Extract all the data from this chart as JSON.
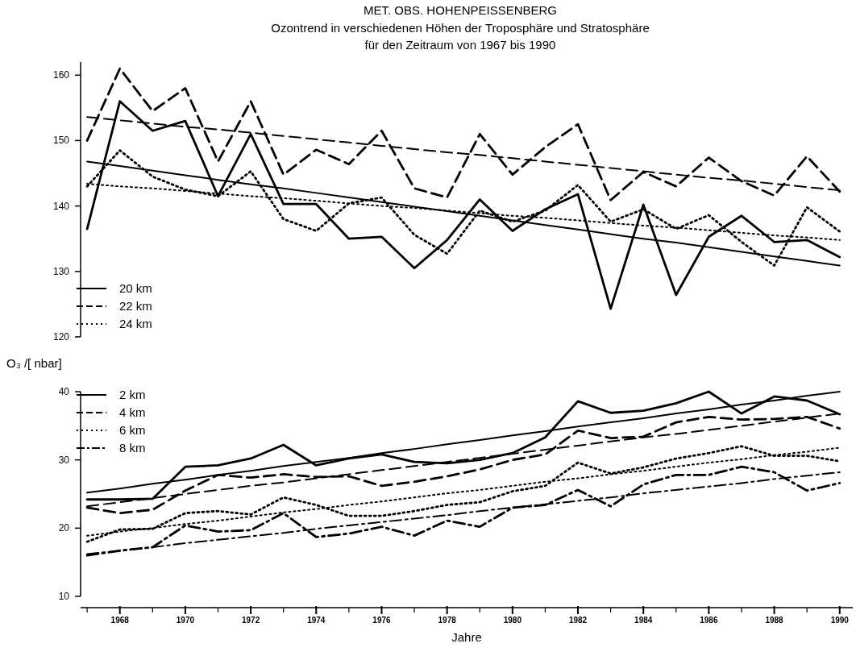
{
  "chart_data": [
    {
      "type": "line",
      "title": "MET. OBS. HOHENPEISSENBERG",
      "subtitle": "Ozontrend in verschiedenen Höhen der Troposphäre und Stratosphäre\nfür den Zeitraum von 1967 bis 1990",
      "x": [
        1967,
        1968,
        1969,
        1970,
        1971,
        1972,
        1973,
        1974,
        1975,
        1976,
        1977,
        1978,
        1979,
        1980,
        1981,
        1982,
        1983,
        1984,
        1985,
        1986,
        1987,
        1988,
        1989,
        1990
      ],
      "series": [
        {
          "name": "20 km",
          "color": "#000000",
          "line_style": "solid",
          "values": [
            136.5,
            156,
            151.5,
            153,
            141.5,
            151,
            140.3,
            140.3,
            135,
            135.3,
            130.5,
            134.8,
            141,
            136.2,
            139.5,
            141.8,
            124.3,
            140.2,
            126.4,
            135.3,
            138.5,
            134.5,
            134.8,
            132.2
          ]
        },
        {
          "name": "22 km",
          "color": "#000000",
          "line_style": "dashed",
          "values": [
            150,
            161,
            154.5,
            158,
            146.8,
            156,
            144.8,
            148.6,
            146.4,
            151.5,
            142.7,
            141.3,
            151,
            144.8,
            149,
            152.5,
            140.9,
            145.2,
            143,
            147.4,
            143.8,
            141.6,
            147.6,
            142.2
          ]
        },
        {
          "name": "24 km",
          "color": "#000000",
          "line_style": "dotted",
          "values": [
            143,
            148.5,
            144.5,
            142.5,
            141.5,
            145.3,
            138,
            136.2,
            140.4,
            141.3,
            135.6,
            132.7,
            139.3,
            137.6,
            139.3,
            143.2,
            137.6,
            139.5,
            136.5,
            138.6,
            134.5,
            130.9,
            139.8,
            136.1
          ]
        },
        {
          "type": "line",
          "color": "#000000",
          "line_style": "solid",
          "values": [
            146.8,
            146.1,
            145.4,
            144.7,
            144.0,
            143.3,
            142.7,
            142.0,
            141.3,
            140.6,
            139.9,
            139.2,
            138.5,
            137.8,
            137.1,
            136.4,
            135.7,
            135.0,
            134.4,
            133.7,
            133.0,
            132.3,
            131.6,
            130.9
          ]
        },
        {
          "type": "line",
          "color": "#000000",
          "line_style": "dashed",
          "values": [
            153.6,
            153.1,
            152.6,
            152.1,
            151.7,
            151.2,
            150.7,
            150.2,
            149.7,
            149.2,
            148.7,
            148.2,
            147.8,
            147.3,
            146.8,
            146.3,
            145.8,
            145.3,
            144.8,
            144.3,
            143.9,
            143.4,
            142.9,
            142.4
          ]
        },
        {
          "type": "line",
          "color": "#000000",
          "line_style": "dotted",
          "values": [
            143.4,
            143.0,
            142.7,
            142.3,
            141.9,
            141.5,
            141.2,
            140.8,
            140.4,
            140.0,
            139.7,
            139.3,
            138.9,
            138.5,
            138.2,
            137.8,
            137.4,
            137.0,
            136.7,
            136.3,
            135.9,
            135.5,
            135.2,
            134.8
          ]
        }
      ],
      "xlim": [
        1966.8,
        1990.4
      ],
      "ylim": [
        120,
        162
      ],
      "yticks": [
        120,
        130,
        140,
        150,
        160
      ],
      "tick_labels": "y",
      "legend": "bottom left",
      "grid": false
    },
    {
      "type": "line",
      "xlabel": "Jahre",
      "ylabel": "O₃ /[ nbar]",
      "x": [
        1967,
        1968,
        1969,
        1970,
        1971,
        1972,
        1973,
        1974,
        1975,
        1976,
        1977,
        1978,
        1979,
        1980,
        1981,
        1982,
        1983,
        1984,
        1985,
        1986,
        1987,
        1988,
        1989,
        1990
      ],
      "series": [
        {
          "name": "2 km",
          "color": "#000000",
          "line_style": "solid",
          "values": [
            24.2,
            24.2,
            24.3,
            29.0,
            29.2,
            30.2,
            32.2,
            29.2,
            30.2,
            30.8,
            29.7,
            29.5,
            30.0,
            31.0,
            33.3,
            38.6,
            36.9,
            37.2,
            38.3,
            40.0,
            36.8,
            39.3,
            38.7,
            36.7
          ]
        },
        {
          "name": "4 km",
          "color": "#000000",
          "line_style": "dashed",
          "values": [
            23.0,
            22.2,
            22.7,
            25.5,
            27.8,
            27.4,
            27.9,
            27.5,
            27.6,
            26.2,
            26.8,
            27.6,
            28.6,
            30.0,
            30.8,
            34.3,
            33.2,
            33.4,
            35.5,
            36.3,
            35.9,
            36.0,
            36.3,
            34.6
          ]
        },
        {
          "name": "6 km",
          "color": "#000000",
          "line_style": "dotted",
          "values": [
            18.0,
            19.8,
            19.9,
            22.2,
            22.5,
            22.0,
            24.5,
            23.4,
            21.8,
            21.8,
            22.5,
            23.4,
            23.8,
            25.4,
            26.2,
            29.6,
            28.0,
            28.9,
            30.2,
            31.0,
            32.0,
            30.6,
            30.6,
            29.8
          ]
        },
        {
          "name": "8 km",
          "color": "#000000",
          "line_style": "dashdot",
          "values": [
            16.0,
            16.7,
            17.2,
            20.4,
            19.5,
            19.7,
            22.2,
            18.7,
            19.2,
            20.2,
            18.9,
            21.1,
            20.2,
            23.0,
            23.4,
            25.6,
            23.2,
            26.4,
            27.8,
            27.8,
            29.0,
            28.2,
            25.5,
            26.6
          ]
        },
        {
          "type": "line",
          "color": "#000000",
          "line_style": "solid",
          "values": [
            25.2,
            25.8,
            26.5,
            27.1,
            27.8,
            28.4,
            29.1,
            29.7,
            30.3,
            31.0,
            31.6,
            32.3,
            32.9,
            33.6,
            34.2,
            34.9,
            35.5,
            36.1,
            36.8,
            37.4,
            38.1,
            38.7,
            39.4,
            40.0
          ]
        },
        {
          "type": "line",
          "color": "#000000",
          "line_style": "dashed",
          "values": [
            23.2,
            23.8,
            24.4,
            25.0,
            25.6,
            26.2,
            26.7,
            27.3,
            27.9,
            28.5,
            29.1,
            29.7,
            30.3,
            30.9,
            31.5,
            32.1,
            32.7,
            33.3,
            33.8,
            34.4,
            35.0,
            35.6,
            36.2,
            36.8
          ]
        },
        {
          "type": "line",
          "color": "#000000",
          "line_style": "dotted",
          "values": [
            18.9,
            19.5,
            20.0,
            20.6,
            21.1,
            21.7,
            22.3,
            22.8,
            23.4,
            23.9,
            24.5,
            25.1,
            25.6,
            26.2,
            26.8,
            27.3,
            27.9,
            28.4,
            29.0,
            29.6,
            30.1,
            30.7,
            31.2,
            31.8
          ]
        },
        {
          "type": "line",
          "color": "#000000",
          "line_style": "dashdot",
          "values": [
            16.2,
            16.7,
            17.2,
            17.8,
            18.3,
            18.8,
            19.3,
            19.9,
            20.4,
            20.9,
            21.4,
            21.9,
            22.5,
            23.0,
            23.5,
            24.0,
            24.5,
            25.1,
            25.6,
            26.1,
            26.6,
            27.2,
            27.7,
            28.2
          ]
        }
      ],
      "xlim": [
        1966.8,
        1990.4
      ],
      "xticks": [
        1968,
        1970,
        1972,
        1974,
        1976,
        1978,
        1980,
        1982,
        1984,
        1986,
        1988,
        1990
      ],
      "ylim": [
        10,
        40
      ],
      "yticks": [
        10,
        20,
        30,
        40
      ],
      "legend": "top left",
      "grid": false
    }
  ]
}
